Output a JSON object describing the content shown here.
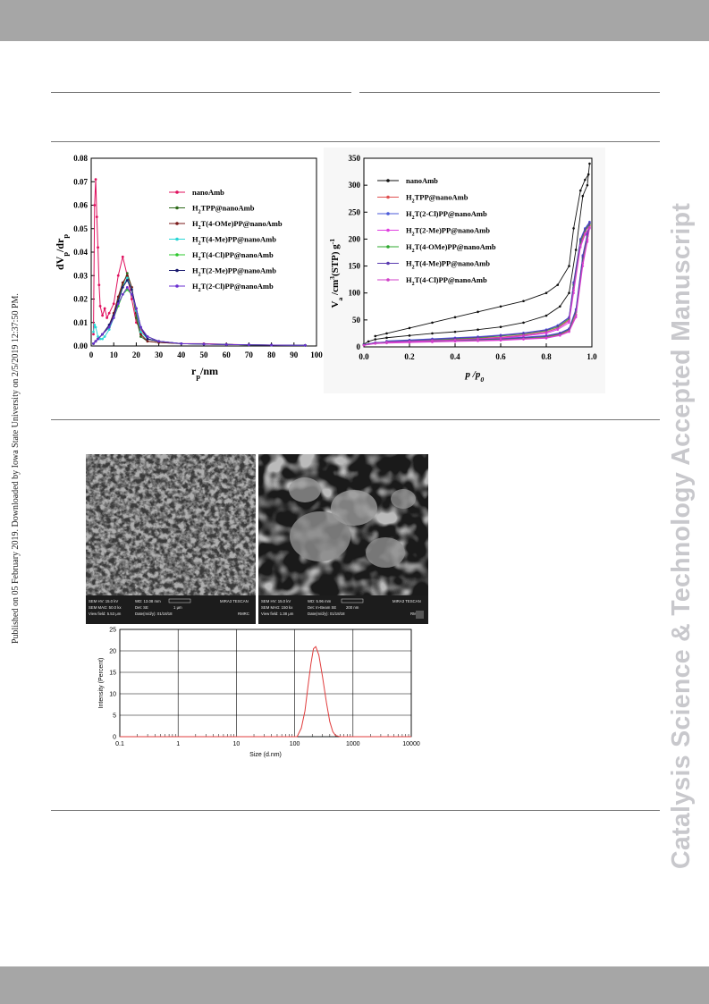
{
  "sidebar_note": "Published on 05 February 2019. Downloaded by Iowa State University on 2/5/2019 12:37:50 PM.",
  "watermark": "Catalysis Science & Technology Accepted Manuscript",
  "chart_data": [
    {
      "type": "line",
      "xlabel": "rp/nm",
      "ylabel": "dVp/drp",
      "xlim": [
        0,
        100
      ],
      "ylim": [
        0,
        0.08
      ],
      "xticks": [
        "0",
        "10",
        "20",
        "30",
        "40",
        "50",
        "60",
        "70",
        "80",
        "90",
        "100"
      ],
      "yticks": [
        "0.00",
        "0.01",
        "0.02",
        "0.03",
        "0.04",
        "0.05",
        "0.06",
        "0.07",
        "0.08"
      ],
      "legend_position": "upper-right",
      "series": [
        {
          "name": "nanoAmb",
          "color": "#e0105e",
          "x": [
            1,
            1.5,
            2,
            2.5,
            3,
            3.5,
            4,
            5,
            6,
            7,
            8,
            10,
            12,
            14,
            16,
            18,
            20,
            25,
            30,
            40,
            50,
            60,
            70,
            80,
            95
          ],
          "y": [
            0.005,
            0.06,
            0.071,
            0.055,
            0.042,
            0.026,
            0.017,
            0.013,
            0.016,
            0.012,
            0.014,
            0.018,
            0.03,
            0.038,
            0.03,
            0.02,
            0.01,
            0.003,
            0.002,
            0.001,
            0.001,
            0.0007,
            0.0005,
            0.0004,
            0.0003
          ]
        },
        {
          "name": "H2TPP@nanoAmb",
          "color": "#2f6b1c",
          "x": [
            1,
            2,
            3,
            5,
            8,
            10,
            12,
            14,
            16,
            18,
            20,
            22,
            25,
            30,
            40,
            50,
            60,
            70,
            80,
            95
          ],
          "y": [
            0.001,
            0.002,
            0.003,
            0.005,
            0.008,
            0.013,
            0.02,
            0.026,
            0.031,
            0.025,
            0.012,
            0.004,
            0.002,
            0.0015,
            0.001,
            0.0008,
            0.0006,
            0.0005,
            0.0004,
            0.0003
          ]
        },
        {
          "name": "H2T(4-OMe)PP@nanoAmb",
          "color": "#7a1a1a",
          "x": [
            1,
            2,
            3,
            5,
            8,
            10,
            12,
            14,
            16,
            18,
            20,
            22,
            25,
            30,
            40,
            50,
            60,
            70,
            80,
            95
          ],
          "y": [
            0.001,
            0.002,
            0.003,
            0.005,
            0.009,
            0.014,
            0.021,
            0.027,
            0.03,
            0.025,
            0.014,
            0.005,
            0.002,
            0.0015,
            0.001,
            0.0008,
            0.0006,
            0.0005,
            0.0004,
            0.0003
          ]
        },
        {
          "name": "H2T(4-Me)PP@nanoAmb",
          "color": "#29d6d6",
          "x": [
            1,
            1.5,
            2,
            3,
            4,
            5,
            6,
            8,
            10,
            12,
            14,
            16,
            18,
            20,
            22,
            25,
            30,
            40,
            50,
            60,
            70,
            80,
            95
          ],
          "y": [
            0.006,
            0.009,
            0.008,
            0.004,
            0.003,
            0.003,
            0.004,
            0.007,
            0.012,
            0.019,
            0.025,
            0.029,
            0.024,
            0.015,
            0.006,
            0.003,
            0.002,
            0.001,
            0.0008,
            0.0006,
            0.0005,
            0.0004,
            0.0003
          ]
        },
        {
          "name": "H2T(4-Cl)PP@nanoAmb",
          "color": "#2ec82e",
          "x": [
            1,
            2,
            3,
            5,
            8,
            10,
            12,
            14,
            16,
            18,
            20,
            22,
            25,
            30,
            40,
            50,
            60,
            70,
            80,
            95
          ],
          "y": [
            0.001,
            0.002,
            0.003,
            0.005,
            0.008,
            0.012,
            0.017,
            0.022,
            0.024,
            0.022,
            0.016,
            0.008,
            0.004,
            0.002,
            0.001,
            0.0008,
            0.0006,
            0.0005,
            0.0004,
            0.0003
          ]
        },
        {
          "name": "H2T(2-Me)PP@nanoAmb",
          "color": "#1a1a6e",
          "x": [
            1,
            2,
            3,
            5,
            8,
            10,
            12,
            14,
            16,
            18,
            20,
            22,
            25,
            30,
            40,
            50,
            60,
            70,
            80,
            95
          ],
          "y": [
            0.001,
            0.002,
            0.003,
            0.005,
            0.009,
            0.013,
            0.019,
            0.025,
            0.028,
            0.024,
            0.016,
            0.008,
            0.003,
            0.002,
            0.001,
            0.0008,
            0.0006,
            0.0005,
            0.0004,
            0.0003
          ]
        },
        {
          "name": "H2T(2-Cl)PP@nanoAmb",
          "color": "#6a2fd0",
          "x": [
            1,
            2,
            3,
            5,
            8,
            10,
            12,
            14,
            16,
            18,
            20,
            22,
            25,
            30,
            40,
            50,
            60,
            70,
            80,
            95
          ],
          "y": [
            0.001,
            0.002,
            0.003,
            0.005,
            0.008,
            0.012,
            0.018,
            0.022,
            0.025,
            0.022,
            0.016,
            0.008,
            0.004,
            0.002,
            0.001,
            0.0008,
            0.0006,
            0.0005,
            0.0004,
            0.0003
          ]
        }
      ]
    },
    {
      "type": "line",
      "xlabel": "p/p0",
      "ylabel": "Va/cm3(STP) g-1",
      "xlim": [
        0,
        1.0
      ],
      "ylim": [
        0,
        350
      ],
      "xticks": [
        "0.0",
        "0.2",
        "0.4",
        "0.6",
        "0.8",
        "1.0"
      ],
      "yticks": [
        "0",
        "50",
        "100",
        "150",
        "200",
        "250",
        "300",
        "350"
      ],
      "legend_position": "upper-left",
      "series": [
        {
          "name": "nanoAmb",
          "color": "#111111",
          "x": [
            0,
            0.02,
            0.05,
            0.1,
            0.2,
            0.3,
            0.4,
            0.5,
            0.6,
            0.7,
            0.8,
            0.86,
            0.9,
            0.93,
            0.96,
            0.98,
            0.99,
            0.985,
            0.97,
            0.95,
            0.92,
            0.9,
            0.85,
            0.8,
            0.7,
            0.6,
            0.5,
            0.4,
            0.3,
            0.2,
            0.1,
            0.05
          ],
          "y": [
            5,
            10,
            14,
            17,
            21,
            25,
            28,
            32,
            37,
            45,
            58,
            75,
            100,
            180,
            280,
            300,
            340,
            320,
            310,
            290,
            220,
            150,
            115,
            100,
            85,
            75,
            65,
            55,
            45,
            35,
            25,
            20
          ]
        },
        {
          "name": "H2TPP@nanoAmb",
          "color": "#e05050",
          "x": [
            0,
            0.05,
            0.1,
            0.2,
            0.3,
            0.4,
            0.5,
            0.6,
            0.7,
            0.8,
            0.86,
            0.9,
            0.93,
            0.96,
            0.98,
            0.99,
            0.97,
            0.95,
            0.92,
            0.9,
            0.85,
            0.8,
            0.7,
            0.6,
            0.5,
            0.4,
            0.3,
            0.2,
            0.1
          ],
          "y": [
            3,
            7,
            8,
            9,
            10,
            11,
            12,
            13,
            15,
            18,
            23,
            30,
            60,
            160,
            200,
            225,
            215,
            190,
            110,
            50,
            35,
            28,
            22,
            18,
            16,
            14,
            12,
            11,
            9
          ]
        },
        {
          "name": "H2T(2-Cl)PP@nanoAmb",
          "color": "#4a5ad8",
          "x": [
            0,
            0.05,
            0.1,
            0.2,
            0.3,
            0.4,
            0.5,
            0.6,
            0.7,
            0.8,
            0.86,
            0.9,
            0.93,
            0.96,
            0.98,
            0.99,
            0.97,
            0.95,
            0.92,
            0.9,
            0.85,
            0.8,
            0.7,
            0.6,
            0.5,
            0.4,
            0.3,
            0.2,
            0.1
          ],
          "y": [
            4,
            8,
            9,
            11,
            12,
            13,
            14,
            16,
            18,
            21,
            26,
            34,
            70,
            170,
            210,
            232,
            220,
            200,
            120,
            55,
            40,
            32,
            26,
            22,
            19,
            17,
            15,
            13,
            11
          ]
        },
        {
          "name": "H2T(2-Me)PP@nanoAmb",
          "color": "#e040e0",
          "x": [
            0,
            0.05,
            0.1,
            0.2,
            0.3,
            0.4,
            0.5,
            0.6,
            0.7,
            0.8,
            0.86,
            0.9,
            0.93,
            0.96,
            0.98,
            0.99,
            0.97,
            0.95,
            0.92,
            0.9,
            0.85,
            0.8,
            0.7,
            0.6,
            0.5,
            0.4,
            0.3,
            0.2,
            0.1
          ],
          "y": [
            3,
            6,
            7,
            8,
            9,
            10,
            11,
            12,
            14,
            16,
            21,
            28,
            55,
            150,
            195,
            220,
            208,
            185,
            100,
            45,
            32,
            25,
            20,
            16,
            14,
            12,
            11,
            10,
            8
          ]
        },
        {
          "name": "H2T(4-OMe)PP@nanoAmb",
          "color": "#2ea82e",
          "x": [
            0,
            0.05,
            0.1,
            0.2,
            0.3,
            0.4,
            0.5,
            0.6,
            0.7,
            0.8,
            0.86,
            0.9,
            0.93,
            0.96,
            0.98,
            0.99,
            0.97,
            0.95,
            0.92,
            0.9,
            0.85,
            0.8,
            0.7,
            0.6,
            0.5,
            0.4,
            0.3,
            0.2,
            0.1
          ],
          "y": [
            4,
            7,
            8,
            10,
            11,
            12,
            13,
            14,
            16,
            19,
            24,
            32,
            65,
            165,
            205,
            228,
            216,
            195,
            115,
            52,
            37,
            30,
            24,
            20,
            17,
            15,
            13,
            12,
            10
          ]
        },
        {
          "name": "H2T(4-Me)PP@nanoAmb",
          "color": "#5a3ab0",
          "x": [
            0,
            0.05,
            0.1,
            0.2,
            0.3,
            0.4,
            0.5,
            0.6,
            0.7,
            0.8,
            0.86,
            0.9,
            0.93,
            0.96,
            0.98,
            0.99,
            0.97,
            0.95,
            0.92,
            0.9,
            0.85,
            0.8,
            0.7,
            0.6,
            0.5,
            0.4,
            0.3,
            0.2,
            0.1
          ],
          "y": [
            4,
            8,
            9,
            10,
            12,
            13,
            14,
            15,
            17,
            20,
            25,
            33,
            68,
            168,
            208,
            230,
            218,
            198,
            118,
            54,
            39,
            31,
            25,
            21,
            18,
            16,
            14,
            12,
            10
          ]
        },
        {
          "name": "H2T(4-Cl)PP@nanoAmb",
          "color": "#d040c8",
          "x": [
            0,
            0.05,
            0.1,
            0.2,
            0.3,
            0.4,
            0.5,
            0.6,
            0.7,
            0.8,
            0.86,
            0.9,
            0.93,
            0.96,
            0.98,
            0.99,
            0.97,
            0.95,
            0.92,
            0.9,
            0.85,
            0.8,
            0.7,
            0.6,
            0.5,
            0.4,
            0.3,
            0.2,
            0.1
          ],
          "y": [
            3,
            7,
            8,
            9,
            10,
            11,
            12,
            13,
            15,
            17,
            22,
            29,
            58,
            155,
            198,
            222,
            210,
            188,
            105,
            48,
            34,
            27,
            21,
            17,
            15,
            13,
            12,
            10,
            9
          ]
        }
      ]
    },
    {
      "type": "line",
      "xlabel": "Size (d.nm)",
      "ylabel": "Intensity (Percent)",
      "xscale": "log",
      "xlim": [
        0.1,
        10000
      ],
      "ylim": [
        0,
        25
      ],
      "xticks": [
        "0.1",
        "1",
        "10",
        "100",
        "1000",
        "10000"
      ],
      "yticks": [
        "0",
        "5",
        "10",
        "15",
        "20",
        "25"
      ],
      "grid": true,
      "series": [
        {
          "name": "",
          "color": "#e03c3c",
          "x": [
            0.1,
            1,
            10,
            100,
            110,
            130,
            150,
            170,
            190,
            210,
            230,
            260,
            300,
            350,
            400,
            450,
            500,
            600,
            1000,
            10000
          ],
          "y": [
            0,
            0,
            0,
            0,
            0,
            2,
            6,
            12,
            17,
            20.5,
            21,
            19,
            14,
            8,
            3.5,
            1.2,
            0.3,
            0,
            0,
            0
          ]
        }
      ]
    }
  ],
  "sem": {
    "left": {
      "line1": [
        "SEM HV: 15.0 kV",
        "WD: 13.08 mm",
        "MIRA3 TESCAN"
      ],
      "line2": [
        "SEM MAG: 50.0 kx",
        "Det: SE",
        "1 μm"
      ],
      "line3": [
        "View field: 5.53 μm",
        "Date(m/d/y): 01/18/18",
        "RMRC"
      ]
    },
    "right": {
      "line1": [
        "SEM HV: 15.0 kV",
        "WD: 5.96 mm",
        "MIRA3 TESCAN"
      ],
      "line2": [
        "SEM MAG: 150 kx",
        "Det: In-Beam SE",
        "200 nm"
      ],
      "line3": [
        "View field: 1.38 μm",
        "Date(m/d/y): 01/18/18",
        "RMRC"
      ]
    }
  }
}
